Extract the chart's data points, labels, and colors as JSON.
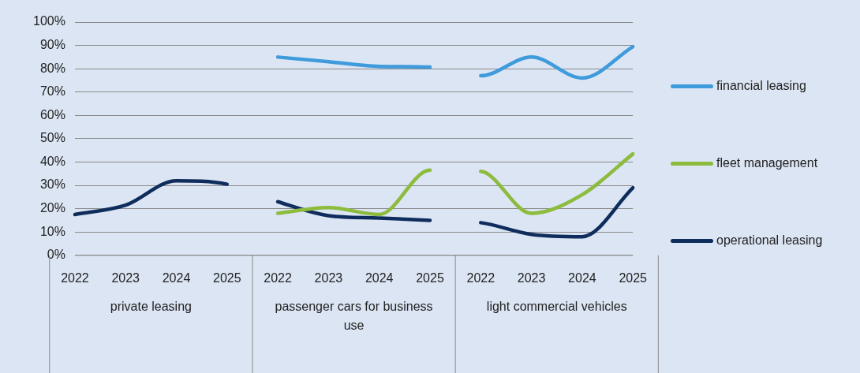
{
  "chart_data": {
    "type": "line",
    "categories": [
      "2022",
      "2023",
      "2024",
      "2025",
      "2022",
      "2023",
      "2024",
      "2025",
      "2022",
      "2023",
      "2024",
      "2025"
    ],
    "annotations": [
      "private leasing",
      "passenger cars for business use",
      "light commercial vehicles"
    ],
    "series": [
      {
        "name": "financial leasing",
        "color": "#3f9bdc",
        "values": [
          null,
          null,
          null,
          null,
          85,
          83,
          81,
          80.7,
          77,
          85,
          76,
          89.5
        ]
      },
      {
        "name": "fleet management",
        "color": "#8dbb3d",
        "values": [
          null,
          null,
          null,
          null,
          18,
          20.5,
          17.5,
          36.5,
          36,
          18,
          26,
          43.5
        ]
      },
      {
        "name": "operational leasing",
        "color": "#0f2d5c",
        "values": [
          17.5,
          21.5,
          32,
          30.5,
          23,
          17,
          16,
          15,
          14,
          9,
          8,
          29
        ]
      }
    ],
    "ylim": [
      0,
      100
    ],
    "yticks": [
      {
        "value": 0,
        "label": "0%"
      },
      {
        "value": 10,
        "label": "10%"
      },
      {
        "value": 20,
        "label": "20%"
      },
      {
        "value": 30,
        "label": "30%"
      },
      {
        "value": 40,
        "label": "40%"
      },
      {
        "value": 50,
        "label": "50%"
      },
      {
        "value": 60,
        "label": "60%"
      },
      {
        "value": 70,
        "label": "70%"
      },
      {
        "value": 80,
        "label": "80%"
      },
      {
        "value": 90,
        "label": "90%"
      },
      {
        "value": 100,
        "label": "100%"
      }
    ],
    "grid": "y",
    "legend": "right",
    "marker": "none",
    "line_style": "solid"
  }
}
